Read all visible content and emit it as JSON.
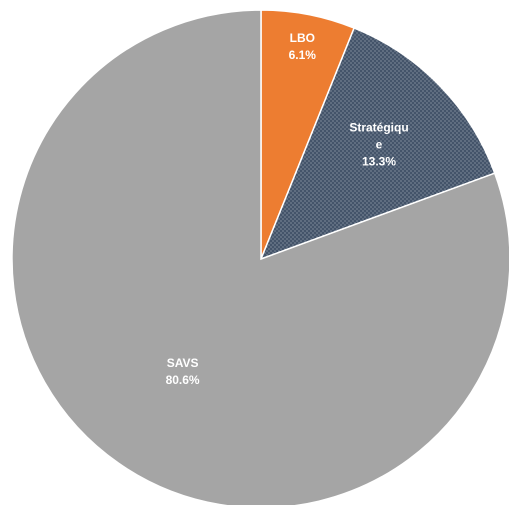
{
  "chart_data": {
    "type": "pie",
    "title": "",
    "slices": [
      {
        "name": "LBO",
        "value": 6.1,
        "value_label": "6.1%",
        "color": "#ED7D31",
        "pattern": "none",
        "label_lines": [
          "LBO",
          "6.1%"
        ]
      },
      {
        "name": "Stratégique",
        "value": 13.3,
        "value_label": "13.3%",
        "color": "#44546A",
        "pattern": "dots",
        "label_lines": [
          "Stratégiqu",
          "e",
          "13.3%"
        ]
      },
      {
        "name": "SAVS",
        "value": 80.6,
        "value_label": "80.6%",
        "color": "#A5A5A5",
        "pattern": "none",
        "label_lines": [
          "SAVS",
          "80.6%"
        ]
      }
    ],
    "start_angle": "12 o'clock",
    "direction": "clockwise",
    "legend": "none",
    "slice_border_color": "#FFFFFF"
  }
}
